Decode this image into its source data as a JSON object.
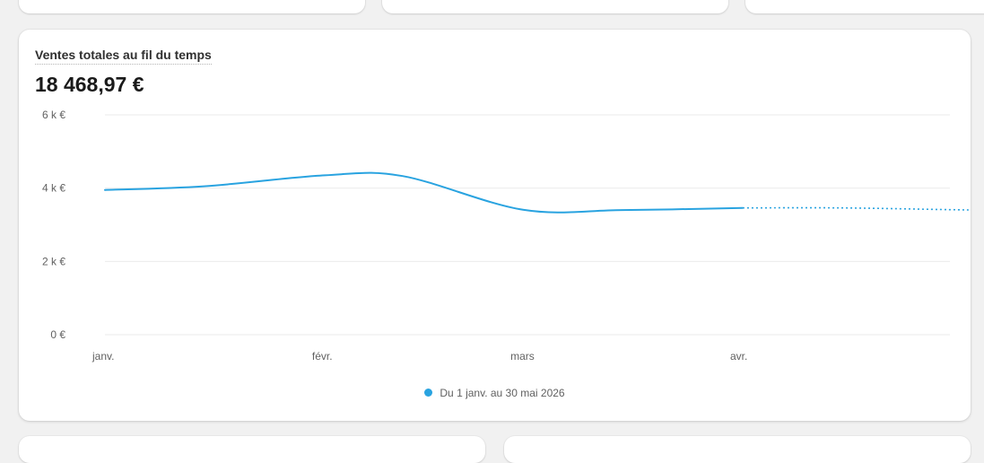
{
  "colors": {
    "series": "#29a3e0",
    "grid": "#ebebeb",
    "axis_text": "#616161"
  },
  "chart_data": {
    "type": "line",
    "title": "Ventes totales au fil du temps",
    "total": "18 468,97 €",
    "x": [
      "2026-01-01",
      "2026-01-15",
      "2026-02-01",
      "2026-02-12",
      "2026-03-01",
      "2026-03-15",
      "2026-04-01",
      "2026-04-15",
      "2026-05-01",
      "2026-05-30"
    ],
    "x_tick_labels": [
      "janv.",
      "févr.",
      "mars",
      "avr."
    ],
    "ylim": [
      0,
      6000
    ],
    "y_tick_labels": [
      "0 €",
      "2 k €",
      "4 k €",
      "6 k €"
    ],
    "y_ticks": [
      0,
      2000,
      4000,
      6000
    ],
    "grid": true,
    "legend_position": "bottom-center",
    "series": [
      {
        "name": "Du 1 janv. au 30 mai 2026",
        "values": [
          3950,
          4050,
          4350,
          4330,
          3410,
          3400,
          3460,
          3460,
          3410,
          3320
        ],
        "actual_until": "2026-04-01",
        "projected_style": "dotted"
      }
    ]
  }
}
